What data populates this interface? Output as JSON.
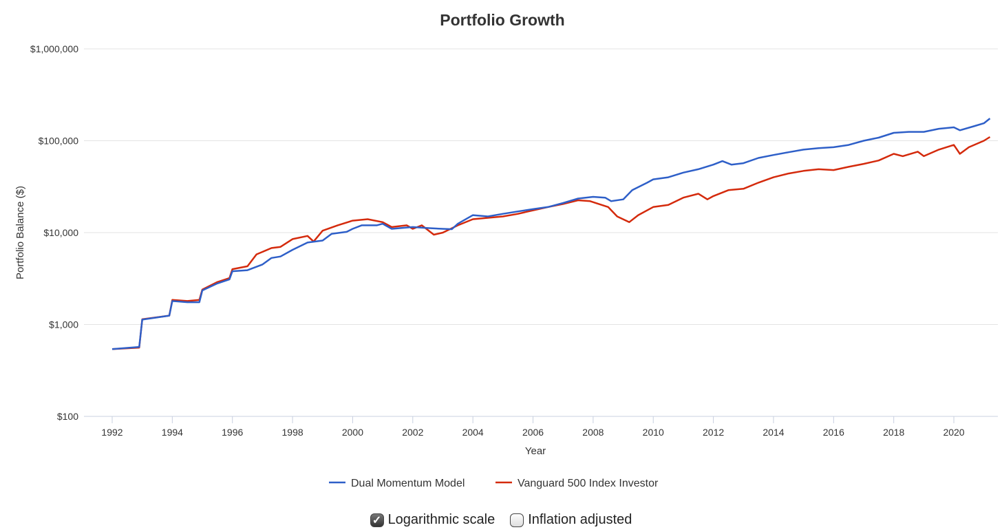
{
  "chart_data": {
    "type": "line",
    "title": "Portfolio Growth",
    "xlabel": "Year",
    "ylabel": "Portfolio Balance ($)",
    "yscale": "log",
    "ylim": [
      100,
      1000000
    ],
    "xlim": [
      1991.9,
      2021.4
    ],
    "x_ticks": [
      "1992",
      "1994",
      "1996",
      "1998",
      "2000",
      "2002",
      "2004",
      "2006",
      "2008",
      "2010",
      "2012",
      "2014",
      "2016",
      "2018",
      "2020"
    ],
    "y_ticks": [
      {
        "value": 100,
        "label": "$100"
      },
      {
        "value": 1000,
        "label": "$1,000"
      },
      {
        "value": 10000,
        "label": "$10,000"
      },
      {
        "value": 100000,
        "label": "$100,000"
      },
      {
        "value": 1000000,
        "label": "$1,000,000"
      }
    ],
    "grid": true,
    "legend": "bottom",
    "series": [
      {
        "name": "Dual Momentum Model",
        "color": "#2e5fc8",
        "points": [
          [
            1992,
            540
          ],
          [
            1992.9,
            570
          ],
          [
            1993,
            1130
          ],
          [
            1993.9,
            1250
          ],
          [
            1994,
            1800
          ],
          [
            1994.5,
            1750
          ],
          [
            1994.9,
            1750
          ],
          [
            1995,
            2350
          ],
          [
            1995.5,
            2800
          ],
          [
            1995.9,
            3100
          ],
          [
            1996,
            3800
          ],
          [
            1996.5,
            3900
          ],
          [
            1997,
            4500
          ],
          [
            1997.3,
            5300
          ],
          [
            1997.6,
            5500
          ],
          [
            1998,
            6500
          ],
          [
            1998.5,
            7800
          ],
          [
            1999,
            8200
          ],
          [
            1999.3,
            9700
          ],
          [
            1999.8,
            10200
          ],
          [
            2000,
            11000
          ],
          [
            2000.3,
            12000
          ],
          [
            2000.8,
            12000
          ],
          [
            2001,
            12500
          ],
          [
            2001.3,
            11000
          ],
          [
            2002,
            11500
          ],
          [
            2002.5,
            11200
          ],
          [
            2003,
            11000
          ],
          [
            2003.3,
            10900
          ],
          [
            2003.5,
            12500
          ],
          [
            2004,
            15500
          ],
          [
            2004.5,
            15000
          ],
          [
            2005,
            16000
          ],
          [
            2005.5,
            17000
          ],
          [
            2006,
            18000
          ],
          [
            2006.5,
            19000
          ],
          [
            2007,
            21000
          ],
          [
            2007.5,
            23500
          ],
          [
            2008,
            24500
          ],
          [
            2008.4,
            24000
          ],
          [
            2008.6,
            22000
          ],
          [
            2009,
            23000
          ],
          [
            2009.3,
            29000
          ],
          [
            2009.8,
            35000
          ],
          [
            2010,
            38000
          ],
          [
            2010.5,
            40000
          ],
          [
            2011,
            45000
          ],
          [
            2011.5,
            49000
          ],
          [
            2012,
            55000
          ],
          [
            2012.3,
            60000
          ],
          [
            2012.6,
            55000
          ],
          [
            2013,
            57000
          ],
          [
            2013.5,
            65000
          ],
          [
            2014,
            70000
          ],
          [
            2014.5,
            75000
          ],
          [
            2015,
            80000
          ],
          [
            2015.5,
            83000
          ],
          [
            2016,
            85000
          ],
          [
            2016.5,
            90000
          ],
          [
            2017,
            100000
          ],
          [
            2017.5,
            108000
          ],
          [
            2018,
            122000
          ],
          [
            2018.5,
            125000
          ],
          [
            2019,
            125000
          ],
          [
            2019.5,
            135000
          ],
          [
            2020,
            140000
          ],
          [
            2020.2,
            130000
          ],
          [
            2020.7,
            145000
          ],
          [
            2021,
            155000
          ],
          [
            2021.2,
            175000
          ]
        ]
      },
      {
        "name": "Vanguard 500 Index Investor",
        "color": "#d42a0c",
        "points": [
          [
            1992,
            540
          ],
          [
            1992.9,
            560
          ],
          [
            1993,
            1140
          ],
          [
            1993.9,
            1250
          ],
          [
            1994,
            1850
          ],
          [
            1994.5,
            1800
          ],
          [
            1994.9,
            1850
          ],
          [
            1995,
            2400
          ],
          [
            1995.5,
            2900
          ],
          [
            1995.9,
            3200
          ],
          [
            1996,
            4000
          ],
          [
            1996.5,
            4300
          ],
          [
            1996.8,
            5800
          ],
          [
            1997.3,
            6800
          ],
          [
            1997.6,
            7000
          ],
          [
            1998,
            8500
          ],
          [
            1998.5,
            9200
          ],
          [
            1998.7,
            8000
          ],
          [
            1999,
            10500
          ],
          [
            1999.5,
            12000
          ],
          [
            2000,
            13500
          ],
          [
            2000.5,
            14000
          ],
          [
            2001,
            13000
          ],
          [
            2001.3,
            11500
          ],
          [
            2001.8,
            12000
          ],
          [
            2002,
            11000
          ],
          [
            2002.3,
            12000
          ],
          [
            2002.7,
            9500
          ],
          [
            2003,
            10000
          ],
          [
            2003.5,
            12000
          ],
          [
            2004,
            14000
          ],
          [
            2004.5,
            14500
          ],
          [
            2005,
            15000
          ],
          [
            2005.5,
            16000
          ],
          [
            2006,
            17500
          ],
          [
            2006.5,
            19000
          ],
          [
            2007,
            20500
          ],
          [
            2007.5,
            22500
          ],
          [
            2007.9,
            22000
          ],
          [
            2008.5,
            19000
          ],
          [
            2008.8,
            15000
          ],
          [
            2009.2,
            13000
          ],
          [
            2009.5,
            15500
          ],
          [
            2010,
            19000
          ],
          [
            2010.5,
            20000
          ],
          [
            2011,
            24000
          ],
          [
            2011.5,
            26500
          ],
          [
            2011.8,
            23000
          ],
          [
            2012,
            25000
          ],
          [
            2012.5,
            29000
          ],
          [
            2013,
            30000
          ],
          [
            2013.5,
            35000
          ],
          [
            2014,
            40000
          ],
          [
            2014.5,
            44000
          ],
          [
            2015,
            47000
          ],
          [
            2015.5,
            49000
          ],
          [
            2016,
            48000
          ],
          [
            2016.5,
            52000
          ],
          [
            2017,
            56000
          ],
          [
            2017.5,
            61000
          ],
          [
            2018,
            72000
          ],
          [
            2018.3,
            68000
          ],
          [
            2018.8,
            76000
          ],
          [
            2019,
            68000
          ],
          [
            2019.5,
            80000
          ],
          [
            2020,
            90000
          ],
          [
            2020.2,
            72000
          ],
          [
            2020.5,
            85000
          ],
          [
            2021,
            100000
          ],
          [
            2021.2,
            110000
          ]
        ]
      }
    ]
  },
  "controls": {
    "log_label": "Logarithmic scale",
    "log_checked": true,
    "inflation_label": "Inflation adjusted",
    "inflation_checked": false
  }
}
